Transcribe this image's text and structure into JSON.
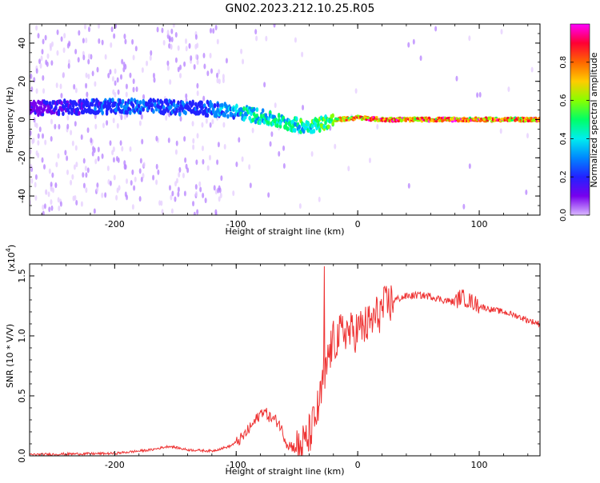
{
  "title": "GN02.2023.212.10.25.R05",
  "colors": {
    "snr_line": "#ee3333",
    "axis": "#000000",
    "colorbar": [
      "#ff00ff",
      "#ff0033",
      "#ff6600",
      "#ffcc00",
      "#88ff00",
      "#00ff66",
      "#00eeee",
      "#0088ff",
      "#2222ff",
      "#7700ee",
      "#d9b8ff"
    ]
  },
  "chart_data": [
    {
      "type": "heatmap",
      "title": "",
      "xlabel": "Height of straight line (km)",
      "ylabel": "Frequency (Hz)",
      "xlim": [
        -270,
        150
      ],
      "ylim": [
        -50,
        50
      ],
      "xticks": [
        -200,
        -100,
        0,
        100
      ],
      "xtick_labels": [
        "-200",
        "-100",
        "0",
        "100"
      ],
      "yticks": [
        -40,
        -20,
        0,
        20,
        40
      ],
      "ytick_labels": [
        "-40",
        "-20",
        "0",
        "20",
        "40"
      ],
      "colorbar": {
        "label": "Normalized spectral amplitude",
        "range": [
          0,
          1
        ],
        "ticks": [
          0.0,
          0.2,
          0.4,
          0.6,
          0.8
        ],
        "tick_labels": [
          "0.0",
          "0.2",
          "0.4",
          "0.6",
          "0.8"
        ]
      },
      "ridge": {
        "x": [
          -270,
          -180,
          -130,
          -110,
          -90,
          -70,
          -50,
          -35,
          -25,
          -15,
          0,
          20,
          60,
          90,
          150
        ],
        "freq": [
          6,
          7,
          6,
          5,
          3,
          0,
          -3,
          -3,
          -1,
          0,
          1,
          0,
          0,
          0,
          0
        ],
        "amplitude": [
          0.15,
          0.3,
          0.25,
          0.35,
          0.45,
          0.5,
          0.5,
          0.55,
          0.6,
          0.8,
          0.85,
          0.9,
          0.9,
          0.9,
          0.9
        ]
      }
    },
    {
      "type": "line",
      "title": "",
      "xlabel": "Height of straight line (km)",
      "ylabel": "SNR (10 * V/V)",
      "multiplier_label": "(x10",
      "multiplier_exp": "4",
      "multiplier_close": ")",
      "xlim": [
        -270,
        150
      ],
      "ylim": [
        0,
        1.6
      ],
      "xticks": [
        -200,
        -100,
        0,
        100
      ],
      "xtick_labels": [
        "-200",
        "-100",
        "0",
        "100"
      ],
      "yticks": [
        0,
        0.5,
        1.0,
        1.5
      ],
      "ytick_labels": [
        "0.0",
        "0.5",
        "1.0",
        "1.5"
      ],
      "series": [
        {
          "name": "SNR",
          "x": [
            -270,
            -240,
            -200,
            -170,
            -155,
            -140,
            -120,
            -105,
            -95,
            -85,
            -78,
            -72,
            -65,
            -58,
            -50,
            -42,
            -35,
            -30,
            -28,
            -27.5,
            -27,
            -25,
            -20,
            -15,
            -10,
            -5,
            0,
            10,
            20,
            30,
            40,
            50,
            60,
            70,
            80,
            85,
            90,
            95,
            100,
            110,
            120,
            130,
            140,
            150
          ],
          "values": [
            0.01,
            0.015,
            0.02,
            0.05,
            0.08,
            0.05,
            0.04,
            0.08,
            0.15,
            0.28,
            0.38,
            0.32,
            0.28,
            0.1,
            0.06,
            0.12,
            0.3,
            0.5,
            0.7,
            1.58,
            0.6,
            0.8,
            0.95,
            1.0,
            1.05,
            1.02,
            1.05,
            1.1,
            1.22,
            1.3,
            1.33,
            1.34,
            1.33,
            1.3,
            1.28,
            1.33,
            1.3,
            1.28,
            1.25,
            1.22,
            1.2,
            1.17,
            1.13,
            1.1
          ]
        }
      ]
    }
  ]
}
